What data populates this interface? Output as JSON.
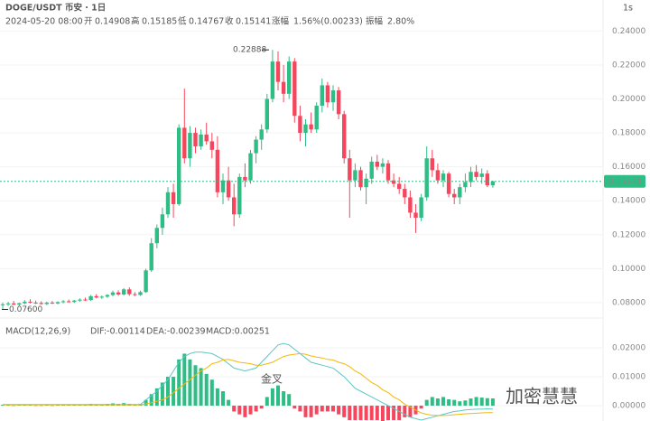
{
  "chart_data": {
    "type": "candlestick",
    "title": "DOGE/USDT 币安 · 1日",
    "interval_button": "1s",
    "date": "2024-05-20 08:00",
    "ohlc_labels": [
      "开",
      "高",
      "低",
      "收"
    ],
    "change_label": "涨幅",
    "change_text": "1.56%(0.00233)",
    "amplitude_label": "振幅",
    "amplitude_text": "2.80%",
    "up_color": "#2ebd85",
    "down_color": "#f6465d",
    "grid": true,
    "ylim": [
      0.072,
      0.246
    ],
    "yticks": [
      {
        "value": 0.24,
        "label": "0.24000"
      },
      {
        "value": 0.22,
        "label": "0.22000"
      },
      {
        "value": 0.2,
        "label": "0.20000"
      },
      {
        "value": 0.18,
        "label": "0.18000"
      },
      {
        "value": 0.16,
        "label": "0.16000"
      },
      {
        "value": 0.14,
        "label": "0.14000"
      },
      {
        "value": 0.12,
        "label": "0.12000"
      },
      {
        "value": 0.1,
        "label": "0.10000"
      },
      {
        "value": 0.08,
        "label": "0.08000"
      }
    ],
    "annotations": [
      {
        "value": 0.22888,
        "label": "0.22888"
      },
      {
        "value": 0.076,
        "label": "0.07600"
      }
    ],
    "candles": [
      [
        0.0785,
        0.08,
        0.076,
        0.079
      ],
      [
        0.079,
        0.0805,
        0.078,
        0.0795
      ],
      [
        0.0795,
        0.081,
        0.0785,
        0.0788
      ],
      [
        0.0788,
        0.08,
        0.078,
        0.0796
      ],
      [
        0.0796,
        0.0815,
        0.079,
        0.0805
      ],
      [
        0.0805,
        0.082,
        0.0795,
        0.08
      ],
      [
        0.08,
        0.0812,
        0.0792,
        0.0798
      ],
      [
        0.0798,
        0.0808,
        0.0788,
        0.0792
      ],
      [
        0.0792,
        0.0805,
        0.0785,
        0.08
      ],
      [
        0.08,
        0.081,
        0.0792,
        0.0795
      ],
      [
        0.0795,
        0.0808,
        0.079,
        0.0803
      ],
      [
        0.0803,
        0.0815,
        0.0796,
        0.0808
      ],
      [
        0.0808,
        0.0818,
        0.08,
        0.0804
      ],
      [
        0.0804,
        0.0816,
        0.0798,
        0.0812
      ],
      [
        0.0812,
        0.0825,
        0.0805,
        0.0818
      ],
      [
        0.0818,
        0.083,
        0.081,
        0.0815
      ],
      [
        0.0815,
        0.0845,
        0.081,
        0.0838
      ],
      [
        0.0838,
        0.085,
        0.0825,
        0.083
      ],
      [
        0.083,
        0.0842,
        0.0822,
        0.0835
      ],
      [
        0.0835,
        0.085,
        0.0828,
        0.0845
      ],
      [
        0.0845,
        0.087,
        0.0838,
        0.086
      ],
      [
        0.086,
        0.0872,
        0.084,
        0.0848
      ],
      [
        0.0848,
        0.0885,
        0.0842,
        0.0878
      ],
      [
        0.0878,
        0.089,
        0.084,
        0.085
      ],
      [
        0.085,
        0.0862,
        0.0838,
        0.0845
      ],
      [
        0.0845,
        0.087,
        0.084,
        0.0862
      ],
      [
        0.0862,
        0.1,
        0.0858,
        0.099
      ],
      [
        0.099,
        0.118,
        0.098,
        0.115
      ],
      [
        0.115,
        0.126,
        0.112,
        0.124
      ],
      [
        0.124,
        0.136,
        0.12,
        0.132
      ],
      [
        0.132,
        0.148,
        0.13,
        0.145
      ],
      [
        0.145,
        0.15,
        0.13,
        0.138
      ],
      [
        0.138,
        0.185,
        0.137,
        0.183
      ],
      [
        0.183,
        0.206,
        0.162,
        0.165
      ],
      [
        0.165,
        0.184,
        0.16,
        0.18
      ],
      [
        0.18,
        0.183,
        0.168,
        0.172
      ],
      [
        0.172,
        0.182,
        0.17,
        0.179
      ],
      [
        0.179,
        0.186,
        0.173,
        0.175
      ],
      [
        0.175,
        0.18,
        0.165,
        0.17
      ],
      [
        0.17,
        0.178,
        0.142,
        0.145
      ],
      [
        0.145,
        0.156,
        0.138,
        0.152
      ],
      [
        0.152,
        0.16,
        0.14,
        0.142
      ],
      [
        0.142,
        0.15,
        0.125,
        0.132
      ],
      [
        0.132,
        0.156,
        0.13,
        0.154
      ],
      [
        0.154,
        0.162,
        0.148,
        0.152
      ],
      [
        0.152,
        0.17,
        0.15,
        0.168
      ],
      [
        0.168,
        0.178,
        0.162,
        0.176
      ],
      [
        0.176,
        0.185,
        0.17,
        0.182
      ],
      [
        0.182,
        0.203,
        0.18,
        0.2
      ],
      [
        0.2,
        0.22888,
        0.198,
        0.222
      ],
      [
        0.222,
        0.228,
        0.205,
        0.21
      ],
      [
        0.21,
        0.22,
        0.198,
        0.203
      ],
      [
        0.203,
        0.225,
        0.2,
        0.222
      ],
      [
        0.222,
        0.224,
        0.186,
        0.19
      ],
      [
        0.19,
        0.196,
        0.175,
        0.18
      ],
      [
        0.18,
        0.188,
        0.172,
        0.185
      ],
      [
        0.185,
        0.192,
        0.18,
        0.182
      ],
      [
        0.182,
        0.198,
        0.18,
        0.196
      ],
      [
        0.196,
        0.212,
        0.192,
        0.208
      ],
      [
        0.208,
        0.21,
        0.195,
        0.198
      ],
      [
        0.198,
        0.208,
        0.193,
        0.205
      ],
      [
        0.205,
        0.207,
        0.188,
        0.191
      ],
      [
        0.191,
        0.193,
        0.162,
        0.165
      ],
      [
        0.165,
        0.17,
        0.13,
        0.152
      ],
      [
        0.152,
        0.162,
        0.148,
        0.158
      ],
      [
        0.158,
        0.16,
        0.146,
        0.148
      ],
      [
        0.148,
        0.156,
        0.138,
        0.153
      ],
      [
        0.153,
        0.166,
        0.15,
        0.163
      ],
      [
        0.163,
        0.167,
        0.158,
        0.16
      ],
      [
        0.16,
        0.165,
        0.156,
        0.162
      ],
      [
        0.162,
        0.164,
        0.15,
        0.152
      ],
      [
        0.152,
        0.156,
        0.148,
        0.15
      ],
      [
        0.15,
        0.154,
        0.144,
        0.147
      ],
      [
        0.147,
        0.15,
        0.138,
        0.142
      ],
      [
        0.142,
        0.146,
        0.13,
        0.133
      ],
      [
        0.133,
        0.138,
        0.121,
        0.13
      ],
      [
        0.13,
        0.144,
        0.128,
        0.142
      ],
      [
        0.142,
        0.172,
        0.14,
        0.165
      ],
      [
        0.165,
        0.17,
        0.154,
        0.158
      ],
      [
        0.158,
        0.162,
        0.15,
        0.152
      ],
      [
        0.152,
        0.158,
        0.148,
        0.156
      ],
      [
        0.156,
        0.157,
        0.142,
        0.144
      ],
      [
        0.144,
        0.147,
        0.138,
        0.142
      ],
      [
        0.142,
        0.15,
        0.138,
        0.148
      ],
      [
        0.148,
        0.156,
        0.145,
        0.151
      ],
      [
        0.151,
        0.16,
        0.148,
        0.157
      ],
      [
        0.157,
        0.161,
        0.152,
        0.154
      ],
      [
        0.154,
        0.159,
        0.15,
        0.156
      ],
      [
        0.156,
        0.158,
        0.148,
        0.1491
      ],
      [
        0.14908,
        0.15185,
        0.14767,
        0.15141
      ]
    ],
    "macd": {
      "title": "MACD(12,26,9)",
      "dif_text": "DIF:-0.00114",
      "dea_text": "DEA:-0.00239",
      "macd_text": "MACD:0.00251",
      "annotation": "金叉",
      "ylim": [
        -0.0053,
        0.0247
      ],
      "yticks": [
        {
          "value": 0.02,
          "label": "0.02000"
        },
        {
          "value": 0.01,
          "label": "0.01000"
        },
        {
          "value": 0,
          "label": "0.00000"
        }
      ],
      "dif_color": "#5ec6c6",
      "dea_color": "#f0b90b",
      "histogram": [
        0.0003,
        0.0002,
        0.0001,
        0.0002,
        0.0003,
        0.0002,
        0.0001,
        0.0001,
        0.0002,
        0.0001,
        0.0002,
        0.0003,
        0.0002,
        0.0003,
        0.0004,
        0.0003,
        0.0006,
        0.0005,
        0.0005,
        0.0006,
        0.0008,
        0.0006,
        0.0009,
        0.0006,
        0.0005,
        0.0006,
        0.002,
        0.004,
        0.006,
        0.008,
        0.01,
        0.01,
        0.016,
        0.018,
        0.016,
        0.014,
        0.013,
        0.011,
        0.009,
        0.006,
        0.005,
        0.002,
        -0.002,
        -0.003,
        -0.004,
        -0.003,
        -0.002,
        -0.001,
        0.003,
        0.006,
        0.007,
        0.005,
        0.004,
        -0.001,
        -0.002,
        -0.004,
        -0.004,
        -0.003,
        -0.002,
        -0.002,
        -0.002,
        -0.003,
        -0.004,
        -0.005,
        -0.005,
        -0.005,
        -0.005,
        -0.005,
        -0.005,
        -0.006,
        -0.005,
        -0.005,
        -0.005,
        -0.004,
        -0.004,
        -0.003,
        -0.001,
        0.002,
        0.003,
        0.0025,
        0.003,
        0.0022,
        0.002,
        0.0015,
        0.0018,
        0.0025,
        0.003,
        0.0028,
        0.0026,
        0.00251
      ],
      "dif": [
        0.0004,
        0.0004,
        0.0004,
        0.0004,
        0.0004,
        0.0004,
        0.0004,
        0.0004,
        0.0004,
        0.0004,
        0.0004,
        0.0004,
        0.0004,
        0.0004,
        0.0004,
        0.0004,
        0.0004,
        0.0004,
        0.0004,
        0.0004,
        0.0004,
        0.0004,
        0.0004,
        0.0004,
        0.0004,
        0.0004,
        0.002,
        0.0035,
        0.005,
        0.007,
        0.009,
        0.012,
        0.015,
        0.017,
        0.018,
        0.0185,
        0.0185,
        0.0183,
        0.018,
        0.017,
        0.016,
        0.0145,
        0.013,
        0.0125,
        0.012,
        0.0125,
        0.013,
        0.015,
        0.017,
        0.019,
        0.021,
        0.0215,
        0.021,
        0.0195,
        0.018,
        0.0165,
        0.015,
        0.0145,
        0.014,
        0.0135,
        0.013,
        0.0115,
        0.01,
        0.008,
        0.006,
        0.005,
        0.004,
        0.003,
        0.002,
        0.001,
        0,
        -0.001,
        -0.002,
        -0.003,
        -0.004,
        -0.0045,
        -0.005,
        -0.0045,
        -0.004,
        -0.0035,
        -0.003,
        -0.0025,
        -0.002,
        -0.0018,
        -0.0015,
        -0.0013,
        -0.0012,
        -0.0012,
        -0.0011,
        -0.00114
      ],
      "dea": [
        0.0003,
        0.0003,
        0.0003,
        0.0003,
        0.0003,
        0.0003,
        0.0003,
        0.0003,
        0.0003,
        0.0003,
        0.0003,
        0.0003,
        0.0003,
        0.0003,
        0.0003,
        0.0003,
        0.0003,
        0.0003,
        0.0003,
        0.0003,
        0.0003,
        0.0003,
        0.0003,
        0.0003,
        0.0003,
        0.0003,
        0.0006,
        0.001,
        0.0015,
        0.002,
        0.003,
        0.0045,
        0.006,
        0.0075,
        0.009,
        0.0105,
        0.012,
        0.013,
        0.0145,
        0.015,
        0.0158,
        0.016,
        0.0155,
        0.015,
        0.0148,
        0.0145,
        0.014,
        0.014,
        0.0145,
        0.015,
        0.016,
        0.017,
        0.0175,
        0.0178,
        0.018,
        0.0178,
        0.0172,
        0.0168,
        0.0165,
        0.016,
        0.0158,
        0.015,
        0.0145,
        0.0135,
        0.012,
        0.011,
        0.0095,
        0.008,
        0.007,
        0.0055,
        0.0045,
        0.003,
        0.002,
        0.0005,
        -0.0005,
        -0.0015,
        -0.0025,
        -0.003,
        -0.0033,
        -0.0034,
        -0.0034,
        -0.0033,
        -0.0031,
        -0.003,
        -0.0028,
        -0.0027,
        -0.0026,
        -0.0025,
        -0.0024,
        -0.00239
      ]
    },
    "watermark": "加密慧慧"
  }
}
